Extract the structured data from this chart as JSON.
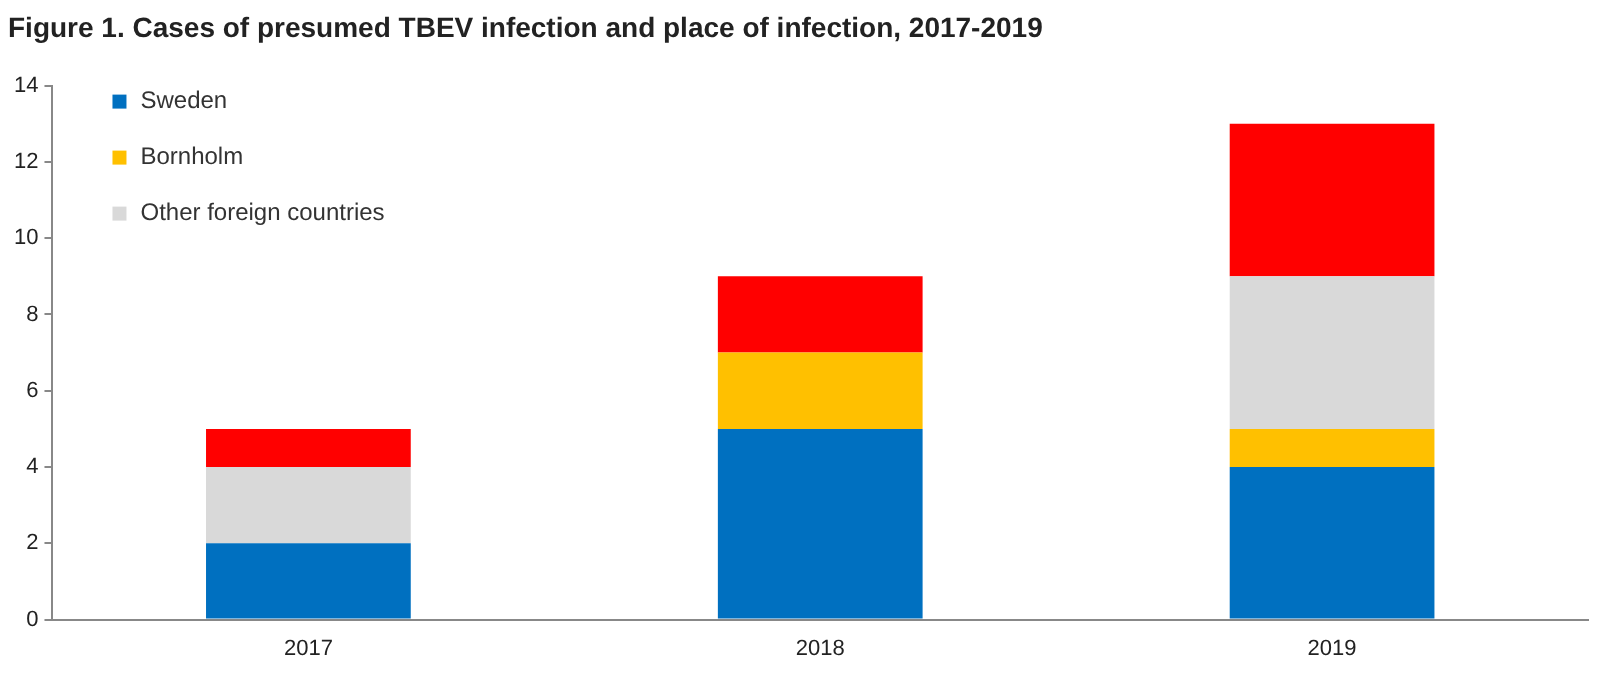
{
  "chart_data": {
    "type": "bar",
    "title": "Figure 1. Cases of presumed TBEV infection and place of infection, 2017-2019",
    "categories": [
      "2017",
      "2018",
      "2019"
    ],
    "stacked": true,
    "ylim": [
      0,
      14
    ],
    "yticks": [
      0,
      2,
      4,
      6,
      8,
      10,
      12,
      14
    ],
    "grid": false,
    "legend": "top left",
    "series": [
      {
        "name": "Sweden",
        "color": "#0070c0",
        "values": [
          2,
          5,
          4
        ]
      },
      {
        "name": "Bornholm",
        "color": "#ffc000",
        "values": [
          0,
          2,
          1
        ]
      },
      {
        "name": "Other foreign countries",
        "color": "#d9d9d9",
        "values": [
          2,
          0,
          4
        ]
      },
      {
        "color": "#ff0000",
        "values": [
          1,
          2,
          4
        ]
      }
    ]
  }
}
